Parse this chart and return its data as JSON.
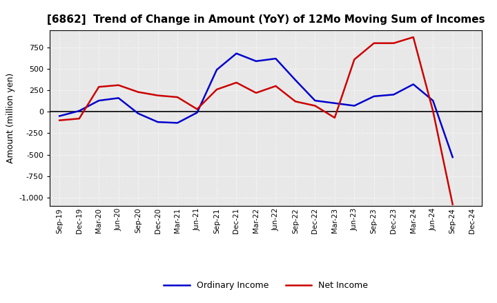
{
  "title": "[6862]  Trend of Change in Amount (YoY) of 12Mo Moving Sum of Incomes",
  "ylabel": "Amount (million yen)",
  "xlabels": [
    "Sep-19",
    "Dec-19",
    "Mar-20",
    "Jun-20",
    "Sep-20",
    "Dec-20",
    "Mar-21",
    "Jun-21",
    "Sep-21",
    "Dec-21",
    "Mar-22",
    "Jun-22",
    "Sep-22",
    "Dec-22",
    "Mar-23",
    "Jun-23",
    "Sep-23",
    "Dec-23",
    "Mar-24",
    "Jun-24",
    "Sep-24",
    "Dec-24"
  ],
  "ordinary_income": [
    -50,
    10,
    130,
    160,
    -20,
    -120,
    -130,
    -10,
    490,
    680,
    590,
    620,
    370,
    130,
    100,
    70,
    180,
    200,
    320,
    130,
    -530,
    null
  ],
  "net_income": [
    -100,
    -80,
    290,
    310,
    230,
    190,
    170,
    30,
    260,
    340,
    220,
    300,
    120,
    70,
    -70,
    610,
    800,
    800,
    870,
    10,
    -1080,
    null
  ],
  "ordinary_income_color": "#0000cc",
  "net_income_color": "#cc0000",
  "ylim": [
    -1100,
    950
  ],
  "yticks": [
    -1000,
    -750,
    -500,
    -250,
    0,
    250,
    500,
    750
  ],
  "background_color": "#ffffff",
  "plot_background_color": "#e8e8e8",
  "grid_color": "#ffffff",
  "legend_labels": [
    "Ordinary Income",
    "Net Income"
  ]
}
